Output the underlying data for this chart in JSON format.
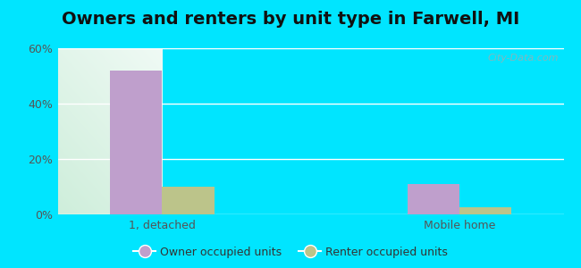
{
  "title": "Owners and renters by unit type in Farwell, MI",
  "categories": [
    "1, detached",
    "Mobile home"
  ],
  "owner_values": [
    52,
    11
  ],
  "renter_values": [
    10,
    2.5
  ],
  "owner_color": "#bf9fcc",
  "renter_color": "#bcc48a",
  "ylim": [
    0,
    60
  ],
  "yticks": [
    0,
    20,
    40,
    60
  ],
  "ytick_labels": [
    "0%",
    "20%",
    "40%",
    "60%"
  ],
  "bar_width": 0.35,
  "group_positions": [
    1.0,
    3.0
  ],
  "bg_color_topleft": "#c8ecd6",
  "bg_color_topright": "#eaf5f0",
  "bg_color_bottomleft": "#c8ecd6",
  "bg_color_bottomright": "#eaf5f0",
  "outer_bg": "#00e5ff",
  "watermark": "City-Data.com",
  "legend_labels": [
    "Owner occupied units",
    "Renter occupied units"
  ],
  "title_fontsize": 14,
  "tick_fontsize": 9,
  "legend_fontsize": 9,
  "grid_color": "#ffffff",
  "grid_linewidth": 1.0
}
